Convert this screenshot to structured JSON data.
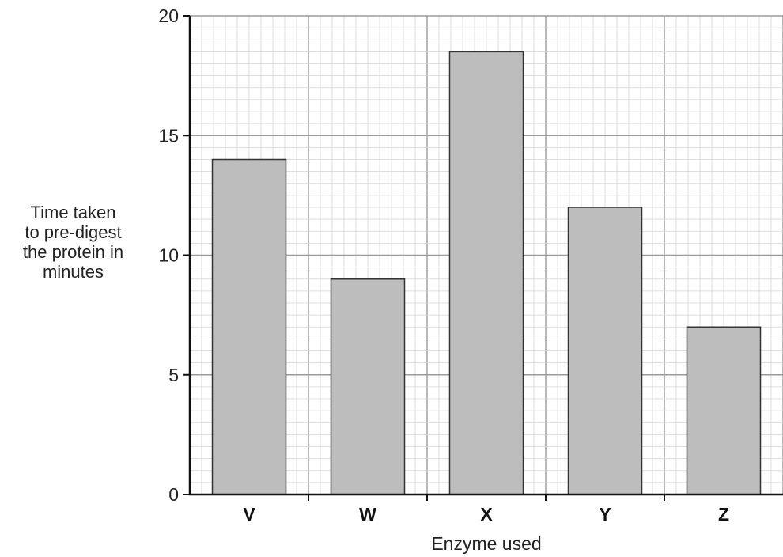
{
  "chart_data": {
    "type": "bar",
    "categories": [
      "V",
      "W",
      "X",
      "Y",
      "Z"
    ],
    "values": [
      14,
      9,
      18.5,
      12,
      7
    ],
    "ylabel": [
      "Time taken",
      "to pre-digest",
      "the protein in",
      "minutes"
    ],
    "xlabel": "Enzyme used",
    "ylim": [
      0,
      20
    ],
    "yticks": [
      0,
      5,
      10,
      15,
      20
    ],
    "grid": true,
    "colors": {
      "bar": "#bdbdbd",
      "bar_stroke": "#333333",
      "grid_major": "#9a9a9a",
      "grid_minor": "#d4d4d4",
      "axis": "#111111"
    }
  }
}
